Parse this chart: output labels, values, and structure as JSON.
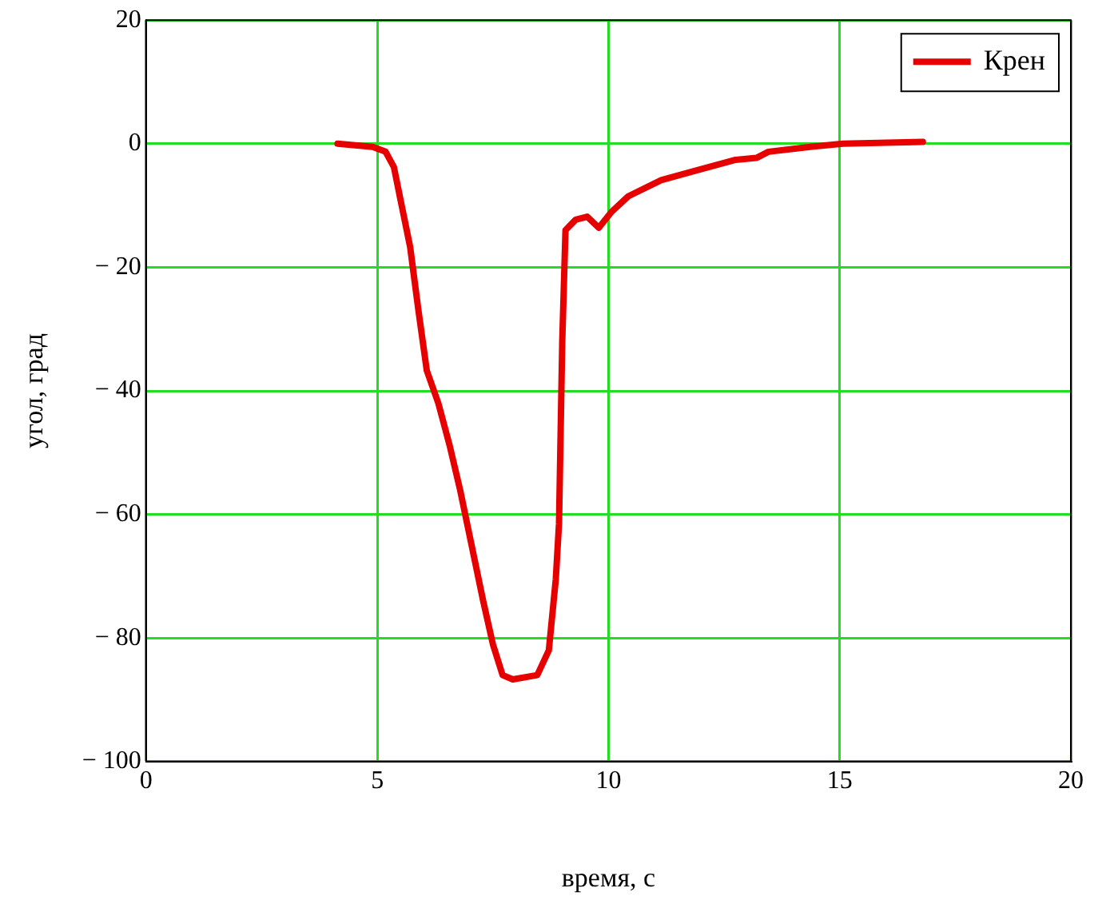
{
  "chart_data": {
    "type": "line",
    "xlabel": "время, с",
    "ylabel": "угол, град",
    "xlim": [
      0,
      20
    ],
    "xticks": [
      0,
      5,
      10,
      15,
      20
    ],
    "ylim": [
      -100,
      20
    ],
    "yticks": [
      {
        "value": -100,
        "label": "− 100"
      },
      {
        "value": -80,
        "label": "− 80"
      },
      {
        "value": -60,
        "label": "− 60"
      },
      {
        "value": -40,
        "label": "− 40"
      },
      {
        "value": -20,
        "label": "− 20"
      },
      0,
      20
    ],
    "grid": true,
    "legend": "top right",
    "marker": "none",
    "line_style": "solid",
    "series": [
      {
        "name": "Крен",
        "color": "#e60000",
        "x": [
          4.14,
          4.9,
          5.18,
          5.36,
          5.5,
          5.71,
          5.89,
          6.07,
          6.32,
          6.57,
          6.79,
          7.04,
          7.29,
          7.5,
          7.71,
          7.93,
          8.46,
          8.71,
          8.86,
          8.93,
          9.0,
          9.07,
          9.29,
          9.54,
          9.79,
          10.07,
          10.43,
          11.14,
          11.86,
          12.75,
          13.2,
          13.46,
          14.36,
          15.07,
          16.8
        ],
        "values": [
          0,
          -0.5,
          -1.3,
          -3.8,
          -9,
          -16.7,
          -27,
          -36.7,
          -42,
          -49,
          -56,
          -65,
          -74,
          -81,
          -86,
          -86.7,
          -86,
          -82,
          -70.5,
          -61.5,
          -32,
          -14,
          -12.3,
          -11.8,
          -13.6,
          -11,
          -8.5,
          -5.9,
          -4.4,
          -2.6,
          -2.3,
          -1.3,
          -0.5,
          0,
          0.3
        ]
      }
    ]
  }
}
